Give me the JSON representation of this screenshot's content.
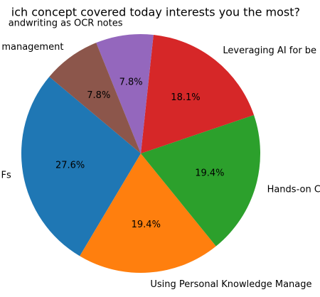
{
  "chart_data": {
    "type": "pie",
    "title": "ich concept covered today interests you the most?",
    "categories": [
      "Fs",
      "Using Personal Knowledge Manage",
      "Hands-on C",
      "Leveraging AI for be",
      "andwriting as OCR notes",
      "management"
    ],
    "values": [
      27.6,
      19.4,
      19.4,
      18.1,
      7.8,
      7.8
    ],
    "value_labels": [
      "27.6%",
      "19.4%",
      "19.4%",
      "18.1%",
      "7.8%",
      "7.8%"
    ],
    "colors": [
      "#1f77b4",
      "#ff7f0e",
      "#2ca02c",
      "#d62728",
      "#9467bd",
      "#8c564b"
    ]
  }
}
